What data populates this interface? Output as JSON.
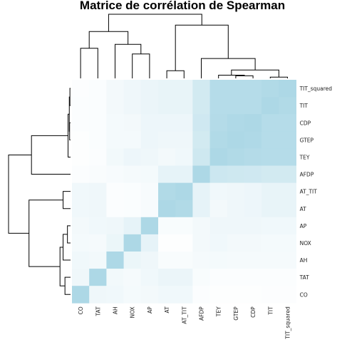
{
  "chart_data": {
    "type": "heatmap",
    "title": "Matrice de corrélation de Spearman",
    "rows": [
      "TIT_squared",
      "TIT",
      "CDP",
      "GTEP",
      "TEY",
      "AFDP",
      "AT_TIT",
      "AT",
      "AP",
      "NOX",
      "AH",
      "TAT",
      "CO"
    ],
    "columns": [
      "CO",
      "TAT",
      "AH",
      "NOX",
      "AP",
      "AT",
      "AT_TIT",
      "AFDP",
      "TEY",
      "GTEP",
      "CDP",
      "TIT",
      "TIT_squared"
    ],
    "values": [
      [
        0.04,
        0.06,
        0.15,
        0.2,
        0.25,
        0.28,
        0.28,
        0.55,
        0.9,
        0.9,
        0.9,
        0.95,
        1.0
      ],
      [
        0.05,
        0.06,
        0.15,
        0.2,
        0.25,
        0.28,
        0.28,
        0.55,
        0.9,
        0.9,
        0.9,
        1.0,
        0.95
      ],
      [
        0.05,
        0.06,
        0.14,
        0.15,
        0.22,
        0.22,
        0.22,
        0.58,
        0.92,
        0.98,
        1.0,
        0.9,
        0.9
      ],
      [
        0.03,
        0.06,
        0.14,
        0.14,
        0.22,
        0.2,
        0.2,
        0.55,
        0.95,
        1.0,
        0.98,
        0.9,
        0.9
      ],
      [
        0.03,
        0.05,
        0.16,
        0.22,
        0.2,
        0.15,
        0.18,
        0.6,
        1.0,
        0.95,
        0.92,
        0.9,
        0.9
      ],
      [
        0.05,
        0.07,
        0.1,
        0.12,
        0.13,
        0.3,
        0.3,
        1.0,
        0.62,
        0.6,
        0.58,
        0.55,
        0.55
      ],
      [
        0.18,
        0.2,
        0.05,
        0.06,
        0.1,
        0.95,
        1.0,
        0.3,
        0.18,
        0.2,
        0.22,
        0.28,
        0.28
      ],
      [
        0.18,
        0.2,
        0.05,
        0.06,
        0.1,
        1.0,
        0.95,
        0.3,
        0.15,
        0.2,
        0.22,
        0.28,
        0.28
      ],
      [
        0.15,
        0.18,
        0.2,
        0.3,
        1.0,
        0.08,
        0.08,
        0.15,
        0.2,
        0.2,
        0.2,
        0.18,
        0.18
      ],
      [
        0.14,
        0.12,
        0.24,
        1.0,
        0.3,
        0.03,
        0.03,
        0.15,
        0.18,
        0.15,
        0.15,
        0.14,
        0.14
      ],
      [
        0.18,
        0.16,
        1.0,
        0.24,
        0.2,
        0.08,
        0.08,
        0.12,
        0.13,
        0.12,
        0.12,
        0.12,
        0.12
      ],
      [
        0.2,
        1.0,
        0.16,
        0.12,
        0.18,
        0.25,
        0.25,
        0.08,
        0.05,
        0.05,
        0.05,
        0.05,
        0.05
      ],
      [
        1.0,
        0.2,
        0.18,
        0.14,
        0.15,
        0.18,
        0.18,
        0.05,
        0.03,
        0.03,
        0.03,
        0.04,
        0.04
      ]
    ],
    "color_scale": {
      "low": "#ffffff",
      "high": "#add8e6"
    },
    "row_dendrogram": true,
    "column_dendrogram": true,
    "legend": false
  }
}
